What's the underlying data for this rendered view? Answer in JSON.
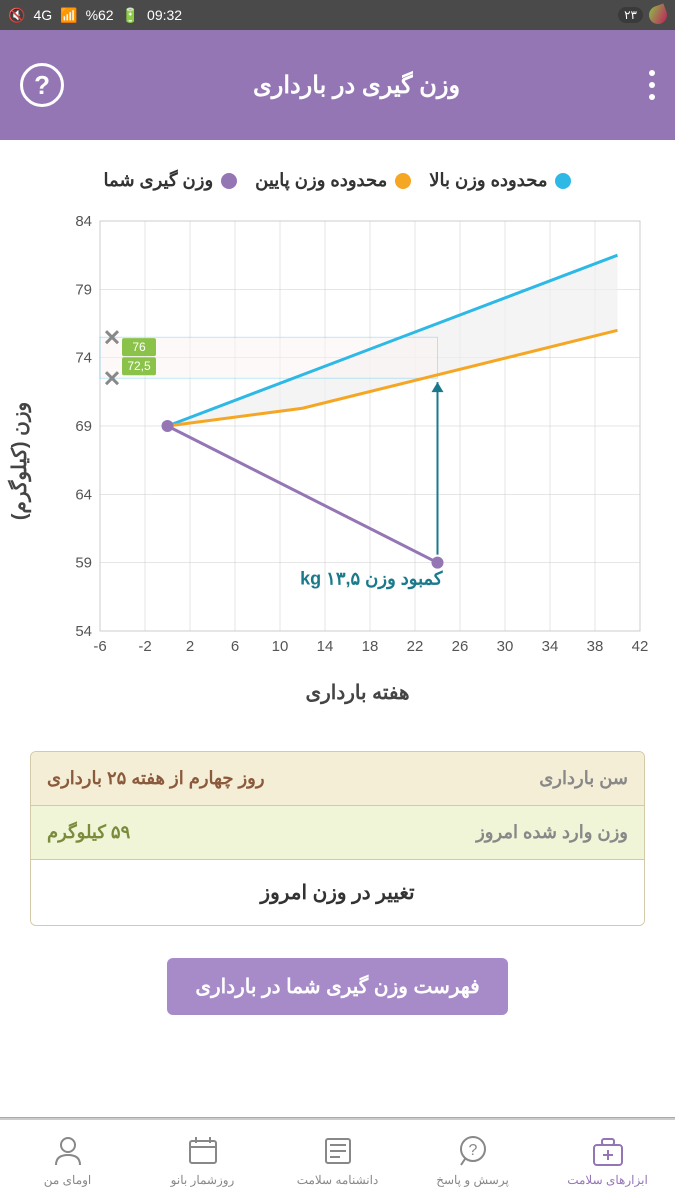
{
  "status_bar": {
    "time": "09:32",
    "battery": "%62",
    "network": "4G",
    "badge": "۲۳"
  },
  "app_bar": {
    "title": "وزن گیری در بارداری"
  },
  "legend": {
    "upper": "محدوده وزن بالا",
    "lower": "محدوده وزن پایین",
    "yours": "وزن گیری شما"
  },
  "chart": {
    "type": "line",
    "y_label": "وزن (کیلوگرم)",
    "x_label": "هفته بارداری",
    "x_ticks": [
      -6,
      -2,
      2,
      6,
      10,
      14,
      18,
      22,
      26,
      30,
      34,
      38,
      42
    ],
    "y_ticks": [
      54,
      59,
      64,
      69,
      74,
      79,
      84
    ],
    "xlim": [
      -6,
      42
    ],
    "ylim": [
      54,
      84
    ],
    "colors": {
      "upper": "#2eb8e6",
      "lower": "#f5a623",
      "yours": "#9576b5",
      "grid": "#cccccc",
      "fill": "#f0f0f0",
      "marker_x": "#888888",
      "marker_label_bg": "#8bc34a",
      "arrow": "#1a7a8c",
      "deficit_text": "#1a7a8c",
      "guide_box": "#fdf5f5"
    },
    "upper_line": [
      [
        0,
        69
      ],
      [
        40,
        81.5
      ]
    ],
    "lower_line": [
      [
        0,
        69
      ],
      [
        12,
        70.3
      ],
      [
        40,
        76
      ]
    ],
    "your_line": [
      [
        0,
        69
      ],
      [
        24,
        59
      ]
    ],
    "marker_upper": {
      "y": 75.5,
      "label": "76"
    },
    "marker_lower": {
      "y": 72.5,
      "label": "72,5"
    },
    "current_week": 24,
    "deficit_text": "کمبود وزن ۱۳,۵ kg",
    "line_width": 3
  },
  "info": {
    "row1_label": "سن بارداری",
    "row1_value": "روز چهارم از هفته ۲۵ بارداری",
    "row2_label": "وزن وارد شده امروز",
    "row2_value": "۵۹ کیلوگرم",
    "row3_label": "تغییر در وزن امروز"
  },
  "action_button": "فهرست وزن گیری شما در بارداری",
  "nav": {
    "items": [
      {
        "label": "ابزارهای سلامت",
        "icon": "medkit",
        "active": true
      },
      {
        "label": "پرسش و پاسخ",
        "icon": "question",
        "active": false
      },
      {
        "label": "دانشنامه سلامت",
        "icon": "news",
        "active": false
      },
      {
        "label": "روزشمار بانو",
        "icon": "calendar",
        "active": false
      },
      {
        "label": "اومای من",
        "icon": "profile",
        "active": false
      }
    ]
  }
}
